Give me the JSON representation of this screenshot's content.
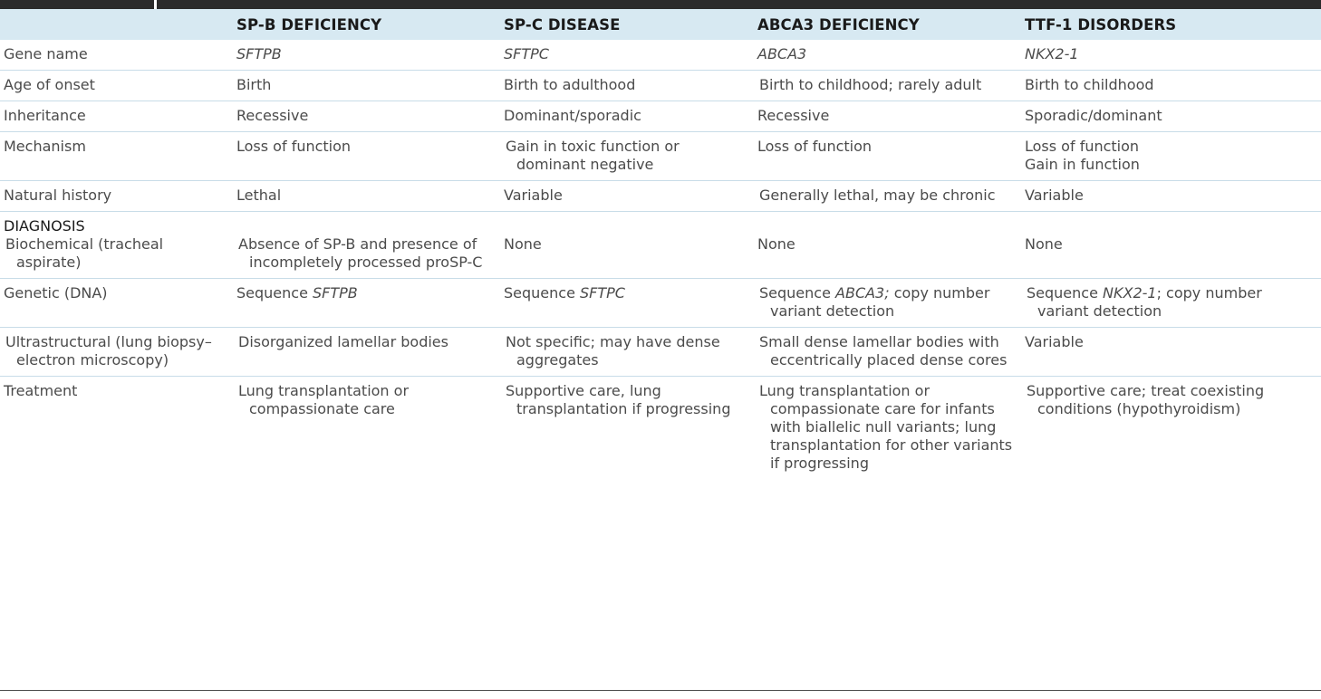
{
  "columns": [
    "",
    "SP-B DEFICIENCY",
    "SP-C DISEASE",
    "ABCA3 DEFICIENCY",
    "TTF-1 DISORDERS"
  ],
  "rows": {
    "gene": {
      "label": "Gene name",
      "c1": "SFTPB",
      "c2": "SFTPC",
      "c3": "ABCA3",
      "c4": "NKX2-1"
    },
    "onset": {
      "label": "Age of onset",
      "c1": "Birth",
      "c2": "Birth to adulthood",
      "c3": "Birth to childhood; rarely adult",
      "c4": "Birth to childhood"
    },
    "inheritance": {
      "label": "Inheritance",
      "c1": "Recessive",
      "c2": "Dominant/sporadic",
      "c3": "Recessive",
      "c4": "Sporadic/dominant"
    },
    "mechanism": {
      "label": "Mechanism",
      "c1": "Loss of function",
      "c2": "Gain in toxic function or dominant negative",
      "c3": "Loss of function",
      "c4a": "Loss of function",
      "c4b": "Gain in function"
    },
    "natural": {
      "label": "Natural history",
      "c1": "Lethal",
      "c2": "Variable",
      "c3": "Generally lethal, may be chronic",
      "c4": "Variable"
    },
    "biochemical": {
      "section": "DIAGNOSIS",
      "label": "Biochemical (tracheal aspirate)",
      "c1": "Absence of SP-B and presence of incompletely processed proSP-C",
      "c2": "None",
      "c3": "None",
      "c4": "None"
    },
    "genetic": {
      "label": "Genetic (DNA)",
      "sequence": "Sequence",
      "c1_gene": "SFTPB",
      "c2_gene": "SFTPC",
      "c3_gene": "ABCA3;",
      "c3_rest": "copy number variant detection",
      "c4_gene": "NKX2-1",
      "c4_rest": "; copy number variant detection"
    },
    "ultra": {
      "label": "Ultrastructural (lung biopsy–electron microscopy)",
      "c1": "Disorganized lamellar bodies",
      "c2": "Not specific; may have dense aggregates",
      "c3": "Small dense lamellar bodies with eccentrically placed dense cores",
      "c4": "Variable"
    },
    "treatment": {
      "label": "Treatment",
      "c1": "Lung transplantation or compassionate care",
      "c2": "Supportive care, lung transplantation if progressing",
      "c3": "Lung transplantation or compassionate care for infants with biallelic null variants; lung transplantation for other variants if progressing",
      "c4": "Supportive care; treat coexisting conditions (hypothyroidism)"
    }
  },
  "colors": {
    "header_bg": "#d7e9f2",
    "rule": "#c8dce8",
    "dark": "#2b2b2b",
    "text": "#4b4b4b"
  }
}
